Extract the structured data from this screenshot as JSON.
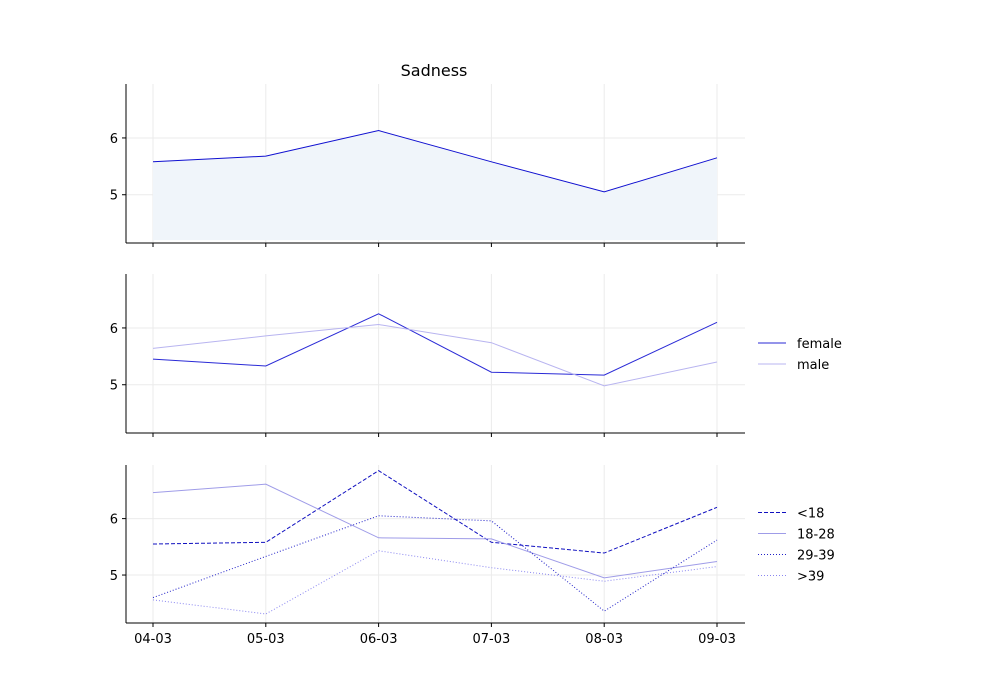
{
  "chart_data": {
    "type": "line",
    "title": "Sadness",
    "x": [
      "04-03",
      "05-03",
      "06-03",
      "07-03",
      "08-03",
      "09-03"
    ],
    "ylim": [
      4.15,
      6.95
    ],
    "yticks": [
      5,
      6
    ],
    "grid": true,
    "panels": [
      {
        "series": [
          {
            "values": [
              5.58,
              5.68,
              6.13,
              5.58,
              5.05,
              5.65
            ],
            "color": "#1010d0",
            "style": "solid",
            "fill": true
          }
        ]
      },
      {
        "legend": "right",
        "series": [
          {
            "name": "female",
            "values": [
              5.45,
              5.33,
              6.25,
              5.22,
              5.17,
              6.1
            ],
            "color": "#2a2ad6",
            "style": "solid"
          },
          {
            "name": "male",
            "values": [
              5.64,
              5.86,
              6.06,
              5.74,
              4.98,
              5.4
            ],
            "color": "#b8b4f0",
            "style": "solid"
          }
        ]
      },
      {
        "legend": "right",
        "series": [
          {
            "name": "<18",
            "values": [
              5.55,
              5.58,
              6.85,
              5.58,
              5.39,
              6.2
            ],
            "color": "#1010c0",
            "style": "dashed"
          },
          {
            "name": "18-28",
            "values": [
              6.46,
              6.61,
              5.66,
              5.64,
              4.95,
              5.24
            ],
            "color": "#9f9ce8",
            "style": "solid"
          },
          {
            "name": "29-39",
            "values": [
              4.6,
              5.33,
              6.05,
              5.96,
              4.36,
              5.62
            ],
            "color": "#2020c8",
            "style": "dotted"
          },
          {
            "name": ">39",
            "values": [
              4.56,
              4.31,
              5.43,
              5.13,
              4.89,
              5.15
            ],
            "color": "#8a86f0",
            "style": "dotted"
          }
        ]
      }
    ]
  }
}
